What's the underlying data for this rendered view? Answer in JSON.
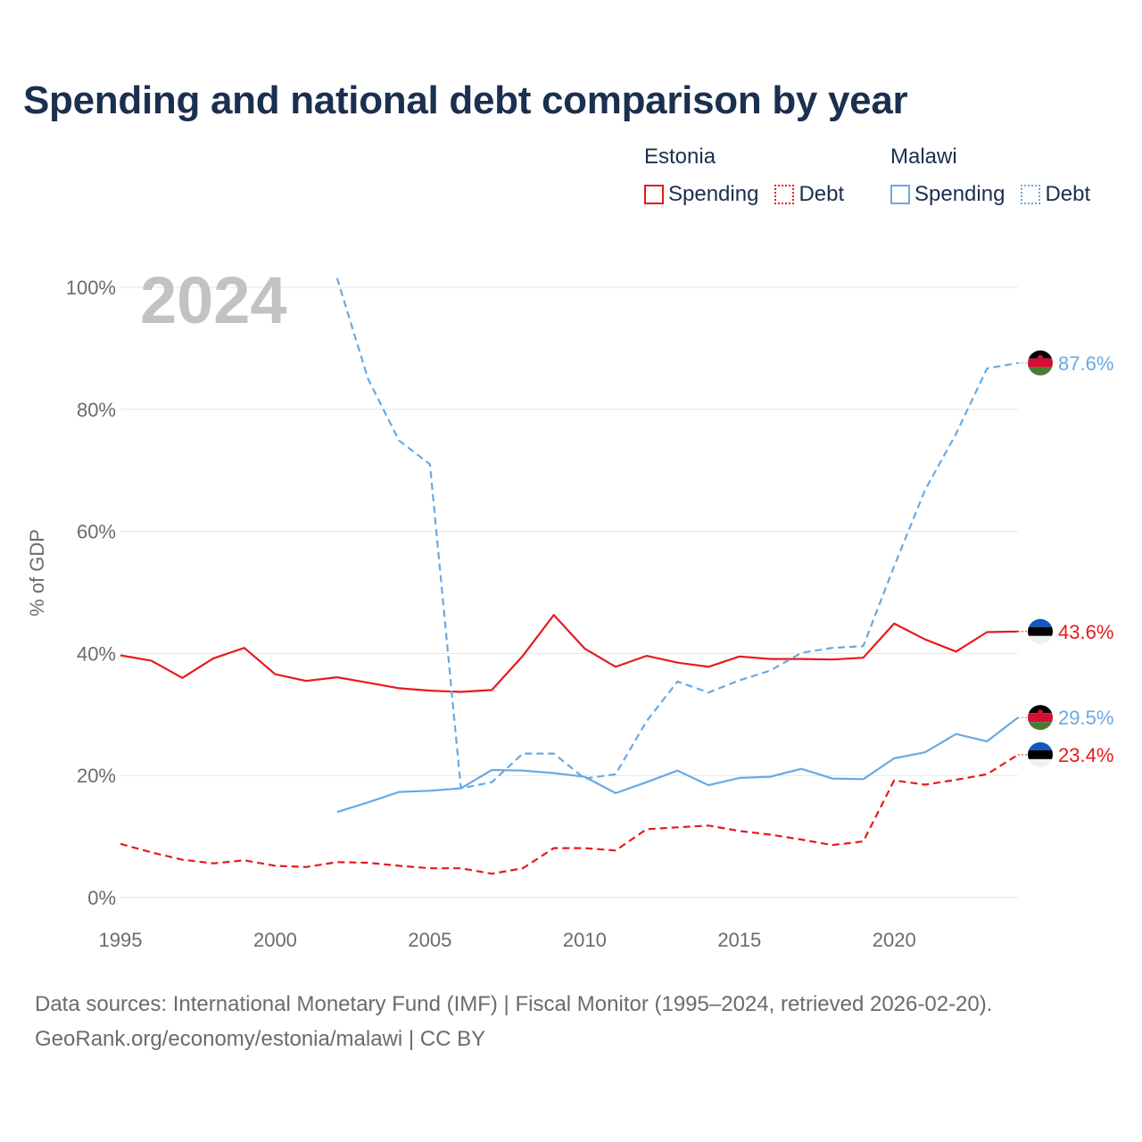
{
  "title": "Spending and national debt comparison by year",
  "legend": {
    "groups": [
      {
        "name": "Estonia",
        "color": "#e8191c",
        "items": [
          {
            "label": "Spending",
            "style": "solid"
          },
          {
            "label": "Debt",
            "style": "dotted"
          }
        ]
      },
      {
        "name": "Malawi",
        "color": "#69a9e3",
        "items": [
          {
            "label": "Spending",
            "style": "solid"
          },
          {
            "label": "Debt",
            "style": "dotted"
          }
        ]
      }
    ]
  },
  "chart_data": {
    "type": "line",
    "title": "Spending and national debt comparison by year",
    "year_label": "2024",
    "xlabel": "",
    "ylabel": "% of GDP",
    "xlim": [
      1995,
      2024
    ],
    "ylim": [
      0,
      100
    ],
    "x_ticks": [
      "1995",
      "2000",
      "2005",
      "2010",
      "2015",
      "2020"
    ],
    "y_ticks": [
      "0%",
      "20%",
      "40%",
      "60%",
      "80%",
      "100%"
    ],
    "grid": true,
    "series": [
      {
        "name": "Estonia Spending",
        "country": "Estonia",
        "metric": "Spending",
        "color": "#e8191c",
        "dash": "solid",
        "x": [
          1995,
          1996,
          1997,
          1998,
          1999,
          2000,
          2001,
          2002,
          2003,
          2004,
          2005,
          2006,
          2007,
          2008,
          2009,
          2010,
          2011,
          2012,
          2013,
          2014,
          2015,
          2016,
          2017,
          2018,
          2019,
          2020,
          2021,
          2022,
          2023,
          2024
        ],
        "values": [
          39.7,
          38.8,
          36.0,
          39.2,
          40.9,
          36.6,
          35.5,
          36.1,
          35.2,
          34.3,
          33.9,
          33.7,
          34.0,
          39.6,
          46.3,
          40.8,
          37.8,
          39.6,
          38.5,
          37.8,
          39.5,
          39.1,
          39.1,
          39.0,
          39.3,
          44.9,
          42.3,
          40.3,
          43.5,
          43.6
        ],
        "end_label": "43.6%"
      },
      {
        "name": "Estonia Debt",
        "country": "Estonia",
        "metric": "Debt",
        "color": "#e8191c",
        "dash": "dashed",
        "x": [
          1995,
          1996,
          1997,
          1998,
          1999,
          2000,
          2001,
          2002,
          2003,
          2004,
          2005,
          2006,
          2007,
          2008,
          2009,
          2010,
          2011,
          2012,
          2013,
          2014,
          2015,
          2016,
          2017,
          2018,
          2019,
          2020,
          2021,
          2022,
          2023,
          2024
        ],
        "values": [
          8.8,
          7.4,
          6.2,
          5.6,
          6.1,
          5.2,
          5.0,
          5.8,
          5.7,
          5.2,
          4.8,
          4.8,
          3.9,
          4.8,
          8.1,
          8.1,
          7.7,
          11.2,
          11.5,
          11.8,
          10.9,
          10.3,
          9.5,
          8.6,
          9.2,
          19.2,
          18.5,
          19.3,
          20.2,
          23.4
        ],
        "end_label": "23.4%"
      },
      {
        "name": "Malawi Spending",
        "country": "Malawi",
        "metric": "Spending",
        "color": "#69a9e3",
        "dash": "solid",
        "x": [
          2002,
          2003,
          2004,
          2005,
          2006,
          2007,
          2008,
          2009,
          2010,
          2011,
          2012,
          2013,
          2014,
          2015,
          2016,
          2017,
          2018,
          2019,
          2020,
          2021,
          2022,
          2023,
          2024
        ],
        "values": [
          14.0,
          15.6,
          17.3,
          17.5,
          17.9,
          20.9,
          20.8,
          20.4,
          19.8,
          17.1,
          18.9,
          20.8,
          18.4,
          19.6,
          19.8,
          21.1,
          19.5,
          19.4,
          22.8,
          23.8,
          26.8,
          25.6,
          29.5
        ],
        "end_label": "29.5%"
      },
      {
        "name": "Malawi Debt",
        "country": "Malawi",
        "metric": "Debt",
        "color": "#69a9e3",
        "dash": "dashed",
        "x": [
          2002,
          2003,
          2004,
          2005,
          2006,
          2007,
          2008,
          2009,
          2010,
          2011,
          2012,
          2013,
          2014,
          2015,
          2016,
          2017,
          2018,
          2019,
          2020,
          2021,
          2022,
          2023,
          2024
        ],
        "values": [
          101.5,
          85.0,
          74.9,
          71.0,
          17.9,
          18.9,
          23.6,
          23.6,
          19.5,
          20.2,
          28.9,
          35.4,
          33.6,
          35.6,
          37.2,
          40.1,
          40.9,
          41.2,
          54.3,
          66.8,
          76.0,
          86.7,
          87.6
        ],
        "end_label": "87.6%"
      }
    ]
  },
  "footer": {
    "line1": "Data sources: International Monetary Fund (IMF) | Fiscal Monitor (1995–2024, retrieved 2026-02-20).",
    "line2": "GeoRank.org/economy/estonia/malawi | CC BY"
  }
}
